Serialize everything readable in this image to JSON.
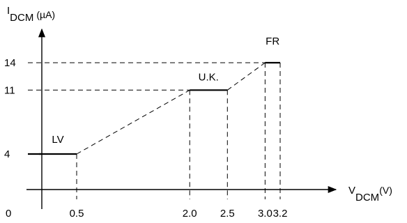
{
  "chart_data": {
    "type": "line",
    "title": "",
    "y_axis": {
      "main": "I",
      "subscript": "DCM",
      "unit": "(µA)"
    },
    "x_axis": {
      "main": "V",
      "subscript": "DCM",
      "unit": "(V)"
    },
    "origin_label": "0",
    "x_ticks": [
      {
        "value": 0.5,
        "label": "0.5"
      },
      {
        "value": 2.0,
        "label": "2.0"
      },
      {
        "value": 2.5,
        "label": "2.5"
      },
      {
        "value": 3.0,
        "label": "3.0"
      },
      {
        "value": 3.2,
        "label": "3.2"
      }
    ],
    "y_ticks": [
      {
        "value": 4,
        "label": "4"
      },
      {
        "value": 11,
        "label": "11"
      },
      {
        "value": 14,
        "label": "14"
      }
    ],
    "xlim": [
      0,
      3.2
    ],
    "ylim": [
      0,
      14
    ],
    "grid": false,
    "segments": [
      {
        "name": "LV",
        "x": [
          0.0,
          0.5
        ],
        "y": [
          4,
          4
        ],
        "style": "solid"
      },
      {
        "name": "",
        "x": [
          0.5,
          2.0
        ],
        "y": [
          4,
          11
        ],
        "style": "dashed"
      },
      {
        "name": "U.K.",
        "x": [
          2.0,
          2.5
        ],
        "y": [
          11,
          11
        ],
        "style": "solid"
      },
      {
        "name": "",
        "x": [
          2.5,
          3.0
        ],
        "y": [
          11,
          14
        ],
        "style": "dashed"
      },
      {
        "name": "FR",
        "x": [
          3.0,
          3.2
        ],
        "y": [
          14,
          14
        ],
        "style": "solid"
      }
    ],
    "region_labels": [
      {
        "text": "LV",
        "x": 0.25
      },
      {
        "text": "U.K.",
        "x": 2.25
      },
      {
        "text": "FR",
        "x": 3.1
      }
    ]
  }
}
